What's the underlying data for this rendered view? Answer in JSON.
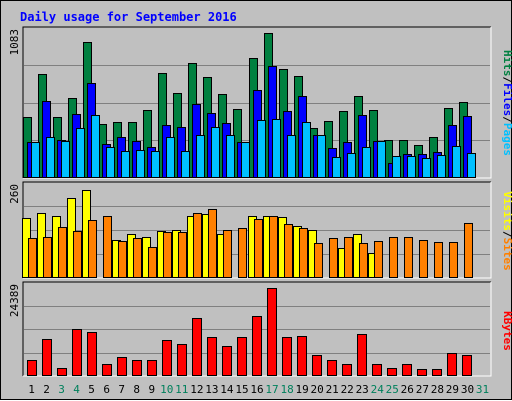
{
  "chart_data": [
    {
      "type": "bar",
      "title": "Daily usage for September 2016",
      "ylim": [
        0,
        1083
      ],
      "y_max_label": "1083",
      "grid": true,
      "legend": {
        "placement": "right",
        "entries": [
          "Pages",
          "Files",
          "Hits"
        ],
        "separators": [
          "/",
          "/"
        ],
        "colors": {
          "Pages": "#00c0ff",
          "Files": "#0000ff",
          "Hits": "#008040"
        }
      },
      "categories": [
        "1",
        "2",
        "3",
        "4",
        "5",
        "6",
        "7",
        "8",
        "9",
        "10",
        "11",
        "12",
        "13",
        "14",
        "15",
        "16",
        "17",
        "18",
        "19",
        "20",
        "21",
        "22",
        "23",
        "24",
        "25",
        "26",
        "27",
        "28",
        "29",
        "30",
        "31"
      ],
      "series": [
        {
          "name": "Hits",
          "color": "#008040",
          "values": [
            455,
            775,
            452,
            596,
            1015,
            402,
            418,
            418,
            505,
            787,
            636,
            856,
            753,
            626,
            518,
            896,
            1083,
            817,
            764,
            376,
            427,
            503,
            614,
            509,
            283,
            283,
            244,
            308,
            524,
            566,
            0
          ]
        },
        {
          "name": "Files",
          "color": "#0000ff",
          "values": [
            268,
            572,
            283,
            478,
            711,
            255,
            309,
            277,
            232,
            393,
            381,
            556,
            487,
            411,
            272,
            657,
            834,
            500,
            614,
            318,
            224,
            270,
            471,
            278,
            113,
            181,
            179,
            196,
            398,
            460,
            0
          ]
        },
        {
          "name": "Pages",
          "color": "#00c0ff",
          "values": [
            270,
            305,
            277,
            373,
            469,
            228,
            203,
            212,
            204,
            303,
            198,
            320,
            381,
            323,
            272,
            431,
            437,
            323,
            420,
            321,
            157,
            189,
            228,
            277,
            165,
            166,
            151,
            175,
            236,
            186,
            0
          ]
        }
      ]
    },
    {
      "type": "bar",
      "title": "",
      "ylim": [
        0,
        260
      ],
      "y_max_label": "260",
      "grid": true,
      "legend": {
        "placement": "right",
        "entries": [
          "Sites",
          "Visits"
        ],
        "separators": [
          "/"
        ],
        "colors": {
          "Sites": "#ff8000",
          "Visits": "#ffff00"
        }
      },
      "categories": [
        "1",
        "2",
        "3",
        "4",
        "5",
        "6",
        "7",
        "8",
        "9",
        "10",
        "11",
        "12",
        "13",
        "14",
        "15",
        "16",
        "17",
        "18",
        "19",
        "20",
        "21",
        "22",
        "23",
        "24",
        "25",
        "26",
        "27",
        "28",
        "29",
        "30",
        "31"
      ],
      "series": [
        {
          "name": "Visits",
          "color": "#ffff00",
          "values": [
            173,
            188,
            180,
            231,
            255,
            0,
            110,
            128,
            118,
            135,
            140,
            180,
            185,
            128,
            0,
            180,
            180,
            177,
            150,
            140,
            0,
            87,
            128,
            73,
            0,
            0,
            0,
            0,
            0,
            0,
            0
          ]
        },
        {
          "name": "Sites",
          "color": "#ff8000",
          "values": [
            115,
            118,
            148,
            135,
            168,
            178,
            108,
            115,
            90,
            133,
            133,
            188,
            200,
            138,
            145,
            170,
            180,
            155,
            143,
            100,
            115,
            118,
            100,
            108,
            118,
            118,
            110,
            105,
            103,
            158,
            0
          ]
        }
      ]
    },
    {
      "type": "bar",
      "title": "",
      "ylim": [
        0,
        24389
      ],
      "y_max_label": "24389",
      "grid": true,
      "legend": {
        "placement": "right",
        "entries": [
          "KBytes"
        ],
        "colors": {
          "KBytes": "#ff0000"
        }
      },
      "categories": [
        "1",
        "2",
        "3",
        "4",
        "5",
        "6",
        "7",
        "8",
        "9",
        "10",
        "11",
        "12",
        "13",
        "14",
        "15",
        "16",
        "17",
        "18",
        "19",
        "20",
        "21",
        "22",
        "23",
        "24",
        "25",
        "26",
        "27",
        "28",
        "29",
        "30",
        "31"
      ],
      "series": [
        {
          "name": "KBytes",
          "color": "#ff0000",
          "values": [
            4310,
            10385,
            2153,
            13108,
            12185,
            3446,
            5385,
            4308,
            4308,
            10000,
            8800,
            16100,
            10800,
            8185,
            10800,
            16700,
            24389,
            10800,
            11154,
            5846,
            4308,
            3446,
            11538,
            3446,
            2153,
            3446,
            1846,
            1846,
            6462,
            5923,
            0
          ]
        }
      ]
    }
  ],
  "x_axis": {
    "labels": [
      "1",
      "2",
      "3",
      "4",
      "5",
      "6",
      "7",
      "8",
      "9",
      "10",
      "11",
      "12",
      "13",
      "14",
      "15",
      "16",
      "17",
      "18",
      "19",
      "20",
      "21",
      "22",
      "23",
      "24",
      "25",
      "26",
      "27",
      "28",
      "29",
      "30",
      "31"
    ],
    "weekend_days": [
      3,
      4,
      10,
      11,
      17,
      18,
      24,
      25,
      31
    ],
    "weekday_color": "#000000",
    "weekend_color": "#00805c"
  },
  "colors": {
    "background": "#c0c0c0",
    "title": "#0000ff",
    "grid": "#808080",
    "frame_dark": "#000000",
    "frame_light": "#ffffff"
  }
}
